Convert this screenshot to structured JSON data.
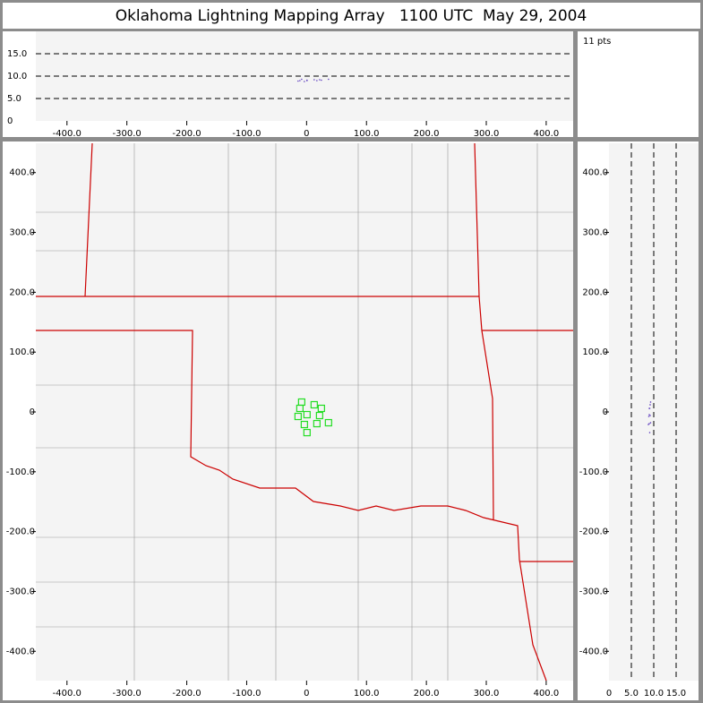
{
  "chart_data": {
    "type": "scatter",
    "title": "Oklahoma Lightning Mapping Array   1100 UTC  May 29, 2004",
    "count_label": "11 pts",
    "series": [
      {
        "color": "#22dd22",
        "x": [
          -8.2,
          12.7,
          -11.2,
          24.7,
          0.7,
          -14.2,
          21.7,
          36.6,
          17.2,
          -3.7,
          0.7
        ],
        "y": [
          16.5,
          12.0,
          6.0,
          6.0,
          -4.5,
          -7.5,
          -6.0,
          -18.0,
          -19.5,
          -21.0,
          -34.5
        ],
        "alt": [
          9.3,
          9.2,
          9.0,
          9.1,
          9.0,
          8.9,
          9.2,
          9.3,
          9.0,
          8.8,
          9.1
        ]
      }
    ],
    "xlim": [
      -452,
      445
    ],
    "ylim": [
      -449,
      449
    ],
    "xticks": [
      {
        "value": -400,
        "label": "-400.0"
      },
      {
        "value": -300,
        "label": "-300.0"
      },
      {
        "value": -200,
        "label": "-200.0"
      },
      {
        "value": -100,
        "label": "-100.0"
      },
      0,
      {
        "value": 100,
        "label": "100.0"
      },
      {
        "value": 200,
        "label": "200.0"
      },
      {
        "value": 300,
        "label": "300.0"
      },
      {
        "value": 400,
        "label": "400.0"
      }
    ],
    "yticks": [
      {
        "value": 400,
        "label": "400.0"
      },
      {
        "value": 300,
        "label": "300.0"
      },
      {
        "value": 200,
        "label": "200.0"
      },
      {
        "value": 100,
        "label": "100.0"
      },
      0,
      {
        "value": -100,
        "label": "-100.0"
      },
      {
        "value": -200,
        "label": "-200.0"
      },
      {
        "value": -300,
        "label": "-300.0"
      },
      {
        "value": -400,
        "label": "-400.0"
      }
    ],
    "zlim": [
      0,
      20
    ],
    "zticks": [
      0,
      {
        "value": 5,
        "label": "5.0"
      },
      {
        "value": 10,
        "label": "10.0"
      },
      {
        "value": 15,
        "label": "15.0"
      }
    ],
    "grid": "dashed"
  }
}
